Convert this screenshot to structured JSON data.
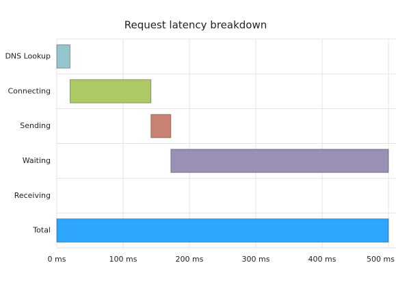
{
  "chart_data": {
    "type": "range-bar",
    "title": "Request latency breakdown",
    "categories": [
      "DNS Lookup",
      "Connecting",
      "Sending",
      "Waiting",
      "Receiving",
      "Total"
    ],
    "starts": [
      0,
      20,
      142,
      172,
      null,
      0
    ],
    "ends": [
      20,
      142,
      172,
      500,
      null,
      500
    ],
    "colors": [
      "#96c5cd",
      "#adc965",
      "#c98272",
      "#9a8fb4",
      null,
      "#2ea6fb"
    ],
    "xlim": [
      0,
      500
    ],
    "xticks": [
      {
        "value": 0,
        "label": "0 ms"
      },
      {
        "value": 100,
        "label": "100 ms"
      },
      {
        "value": 200,
        "label": "200 ms"
      },
      {
        "value": 300,
        "label": "300 ms"
      },
      {
        "value": 400,
        "label": "400 ms"
      },
      {
        "value": 500,
        "label": "500 ms"
      }
    ],
    "grid": true
  }
}
